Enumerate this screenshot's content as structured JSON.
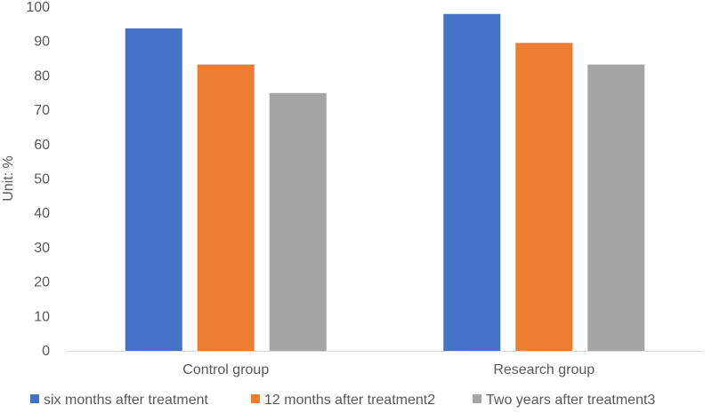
{
  "chart_data": {
    "type": "bar",
    "categories": [
      "Control group",
      "Research group"
    ],
    "series": [
      {
        "name": "six months after treatment",
        "values": [
          93.8,
          98.0
        ],
        "color": "#4472C4"
      },
      {
        "name": "12 months after treatment2",
        "values": [
          83.3,
          89.6
        ],
        "color": "#ED7D31"
      },
      {
        "name": "Two years after treatment3",
        "values": [
          75.0,
          83.3
        ],
        "color": "#A5A5A5"
      }
    ],
    "title": "",
    "xlabel": "",
    "ylabel": "Unit: %",
    "ylim": [
      0,
      100
    ],
    "yticks": [
      0,
      10,
      20,
      30,
      40,
      50,
      60,
      70,
      80,
      90,
      100
    ],
    "grid": false,
    "legend_position": "bottom"
  }
}
